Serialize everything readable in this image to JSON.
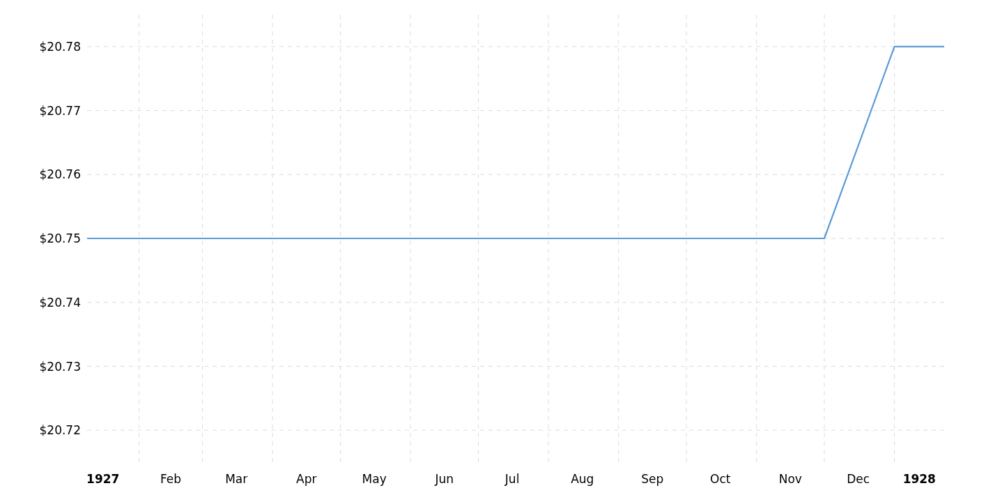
{
  "chart_data": {
    "type": "line",
    "x": [
      "1927-01-09",
      "1927-12-01",
      "1928-01-01",
      "1928-01-23"
    ],
    "series": [
      {
        "color": "#5b9bd5",
        "values": [
          20.75,
          20.75,
          20.78,
          20.78
        ]
      }
    ],
    "xlim": [
      "1927-01-09",
      "1928-01-23"
    ],
    "xticks": [
      {
        "value": "1927-01-16",
        "label": "1927"
      },
      {
        "value": "1927-02-01",
        "label": null
      },
      {
        "value": "1927-02-15",
        "label": "Feb"
      },
      {
        "value": "1927-03-01",
        "label": null
      },
      {
        "value": "1927-03-16",
        "label": "Mar"
      },
      {
        "value": "1927-04-01",
        "label": null
      },
      {
        "value": "1927-04-16",
        "label": "Apr"
      },
      {
        "value": "1927-05-01",
        "label": null
      },
      {
        "value": "1927-05-16",
        "label": "May"
      },
      {
        "value": "1927-06-01",
        "label": null
      },
      {
        "value": "1927-06-16",
        "label": "Jun"
      },
      {
        "value": "1927-07-01",
        "label": null
      },
      {
        "value": "1927-07-16",
        "label": "Jul"
      },
      {
        "value": "1927-08-01",
        "label": null
      },
      {
        "value": "1927-08-16",
        "label": "Aug"
      },
      {
        "value": "1927-09-01",
        "label": null
      },
      {
        "value": "1927-09-16",
        "label": "Sep"
      },
      {
        "value": "1927-10-01",
        "label": null
      },
      {
        "value": "1927-10-16",
        "label": "Oct"
      },
      {
        "value": "1927-11-01",
        "label": null
      },
      {
        "value": "1927-11-16",
        "label": "Nov"
      },
      {
        "value": "1927-12-01",
        "label": null
      },
      {
        "value": "1927-12-16",
        "label": "Dec"
      },
      {
        "value": "1928-01-01",
        "label": null
      },
      {
        "value": "1928-01-12",
        "label": "1928"
      }
    ],
    "ylim": [
      20.715,
      20.785
    ],
    "yticks": [
      {
        "value": 20.72,
        "label": "$20.72"
      },
      {
        "value": 20.73,
        "label": "$20.73"
      },
      {
        "value": 20.74,
        "label": "$20.74"
      },
      {
        "value": 20.75,
        "label": "$20.75"
      },
      {
        "value": 20.76,
        "label": "$20.76"
      },
      {
        "value": 20.77,
        "label": "$20.77"
      },
      {
        "value": 20.78,
        "label": "$20.78"
      }
    ],
    "grid": true,
    "marker": "none",
    "line_style": "solid"
  }
}
